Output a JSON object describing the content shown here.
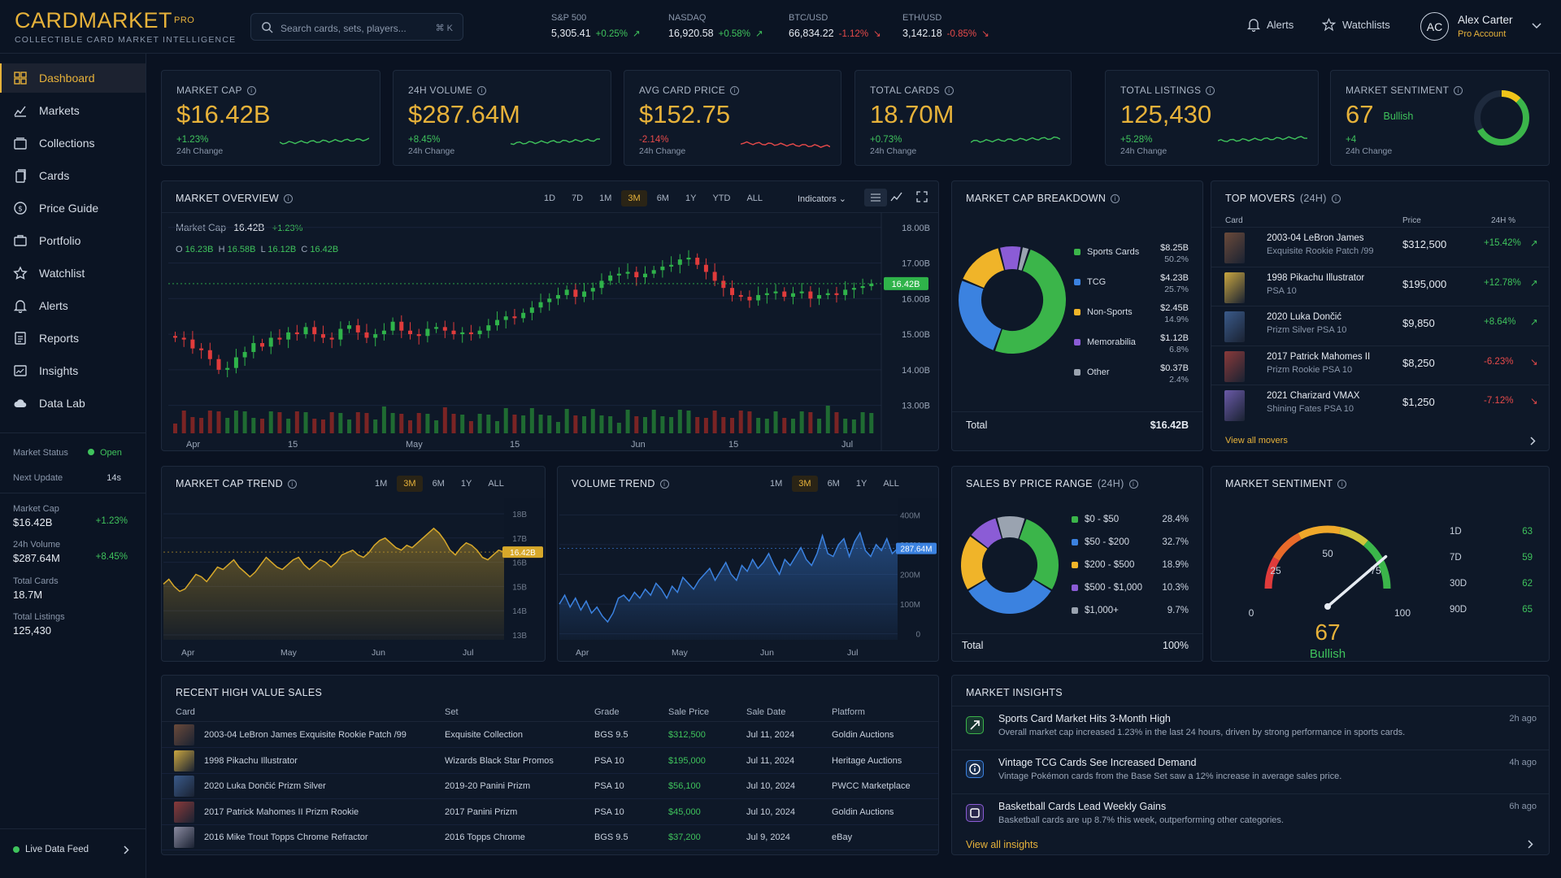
{
  "brand": {
    "name": "CARDMARKET",
    "sup": "PRO",
    "tagline": "COLLECTIBLE CARD MARKET INTELLIGENCE"
  },
  "search": {
    "placeholder": "Search cards, sets, players...",
    "shortcut": "⌘ K"
  },
  "tickers": [
    {
      "name": "S&P 500",
      "value": "5,305.41",
      "change": "+0.25%",
      "dir": "up"
    },
    {
      "name": "NASDAQ",
      "value": "16,920.58",
      "change": "+0.58%",
      "dir": "up"
    },
    {
      "name": "BTC/USD",
      "value": "66,834.22",
      "change": "-1.12%",
      "dir": "dn"
    },
    {
      "name": "ETH/USD",
      "value": "3,142.18",
      "change": "-0.85%",
      "dir": "dn"
    }
  ],
  "topnav": {
    "alerts": "Alerts",
    "watchlists": "Watchlists"
  },
  "user": {
    "initials": "AC",
    "name": "Alex Carter",
    "role": "Pro Account"
  },
  "sidebar": {
    "items": [
      {
        "label": "Dashboard",
        "icon": "grid-icon"
      },
      {
        "label": "Markets",
        "icon": "chart-icon"
      },
      {
        "label": "Collections",
        "icon": "collection-icon"
      },
      {
        "label": "Cards",
        "icon": "cards-icon"
      },
      {
        "label": "Price Guide",
        "icon": "dollar-icon"
      },
      {
        "label": "Portfolio",
        "icon": "briefcase-icon"
      },
      {
        "label": "Watchlist",
        "icon": "star-icon"
      },
      {
        "label": "Alerts",
        "icon": "bell-icon"
      },
      {
        "label": "Reports",
        "icon": "report-icon"
      },
      {
        "label": "Insights",
        "icon": "insights-icon"
      },
      {
        "label": "Data Lab",
        "icon": "cloud-icon"
      }
    ],
    "status_label": "Market Status",
    "status_value": "Open",
    "update_label": "Next Update",
    "update_value": "14s",
    "stats": [
      {
        "label": "Market Cap",
        "value": "$16.42B",
        "change": "+1.23%"
      },
      {
        "label": "24h Volume",
        "value": "$287.64M",
        "change": "+8.45%"
      },
      {
        "label": "Total Cards",
        "value": "18.7M",
        "change": ""
      },
      {
        "label": "Total Listings",
        "value": "125,430",
        "change": ""
      }
    ],
    "live_feed": "Live Data Feed"
  },
  "kpis": [
    {
      "title": "MARKET CAP",
      "value": "$16.42B",
      "change": "+1.23%",
      "dir": "up",
      "sub": "24h Change"
    },
    {
      "title": "24H VOLUME",
      "value": "$287.64M",
      "change": "+8.45%",
      "dir": "up",
      "sub": "24h Change"
    },
    {
      "title": "AVG CARD PRICE",
      "value": "$152.75",
      "change": "-2.14%",
      "dir": "dn",
      "sub": "24h Change"
    },
    {
      "title": "TOTAL CARDS",
      "value": "18.70M",
      "change": "+0.73%",
      "dir": "up",
      "sub": "24h Change"
    },
    {
      "title": "TOTAL LISTINGS",
      "value": "125,430",
      "change": "+5.28%",
      "dir": "up",
      "sub": "24h Change"
    },
    {
      "title": "MARKET SENTIMENT",
      "value": "67",
      "extra": "Bullish",
      "change": "+4",
      "dir": "up",
      "sub": "24h Change",
      "level": 0.67
    }
  ],
  "overview": {
    "title": "MARKET OVERVIEW",
    "timeframes": [
      "1D",
      "7D",
      "1M",
      "3M",
      "6M",
      "1Y",
      "YTD",
      "ALL"
    ],
    "selected": "3M",
    "indicators": "Indicators",
    "label": "Market Cap",
    "value": "16.42B",
    "change": "+1.23%",
    "ohlc": {
      "o": "16.23B",
      "h": "16.58B",
      "l": "16.12B",
      "c": "16.42B"
    },
    "badge": "16.42B"
  },
  "breakdown": {
    "title": "MARKET CAP BREAKDOWN",
    "items": [
      {
        "name": "Sports Cards",
        "value": "$8.25B",
        "pct": "50.2%",
        "color": "#3bb54a"
      },
      {
        "name": "TCG",
        "value": "$4.23B",
        "pct": "25.7%",
        "color": "#3b82e0"
      },
      {
        "name": "Non-Sports",
        "value": "$2.45B",
        "pct": "14.9%",
        "color": "#f0b429"
      },
      {
        "name": "Memorabilia",
        "value": "$1.12B",
        "pct": "6.8%",
        "color": "#8b5cd6"
      },
      {
        "name": "Other",
        "value": "$0.37B",
        "pct": "2.4%",
        "color": "#9aa3b0"
      }
    ],
    "total_label": "Total",
    "total_value": "$16.42B"
  },
  "movers": {
    "title": "TOP MOVERS",
    "period": "(24H)",
    "headers": {
      "card": "Card",
      "price": "Price",
      "chg": "24H %"
    },
    "rows": [
      {
        "name": "2003-04 LeBron James",
        "sub": "Exquisite Rookie Patch /99",
        "price": "$312,500",
        "chg": "+15.42%",
        "dir": "up"
      },
      {
        "name": "1998 Pikachu Illustrator",
        "sub": "PSA 10",
        "price": "$195,000",
        "chg": "+12.78%",
        "dir": "up"
      },
      {
        "name": "2020 Luka Dončić",
        "sub": "Prizm Silver PSA 10",
        "price": "$9,850",
        "chg": "+8.64%",
        "dir": "up"
      },
      {
        "name": "2017 Patrick Mahomes II",
        "sub": "Prizm Rookie PSA 10",
        "price": "$8,250",
        "chg": "-6.23%",
        "dir": "dn"
      },
      {
        "name": "2021 Charizard VMAX",
        "sub": "Shining Fates PSA 10",
        "price": "$1,250",
        "chg": "-7.12%",
        "dir": "dn"
      }
    ],
    "view_all": "View all movers"
  },
  "cap_trend": {
    "title": "MARKET CAP TREND",
    "timeframes": [
      "1M",
      "3M",
      "6M",
      "1Y",
      "ALL"
    ],
    "selected": "3M",
    "badge": "16.42B"
  },
  "vol_trend": {
    "title": "VOLUME TREND",
    "timeframes": [
      "1M",
      "3M",
      "6M",
      "1Y",
      "ALL"
    ],
    "selected": "3M",
    "badge": "287.64M"
  },
  "price_range": {
    "title": "SALES BY PRICE RANGE",
    "period": "(24H)",
    "items": [
      {
        "name": "$0 - $50",
        "pct": "28.4%",
        "color": "#3bb54a"
      },
      {
        "name": "$50 - $200",
        "pct": "32.7%",
        "color": "#3b82e0"
      },
      {
        "name": "$200 - $500",
        "pct": "18.9%",
        "color": "#f0b429"
      },
      {
        "name": "$500 - $1,000",
        "pct": "10.3%",
        "color": "#8b5cd6"
      },
      {
        "name": "$1,000+",
        "pct": "9.7%",
        "color": "#9aa3b0"
      }
    ],
    "total_label": "Total",
    "total_value": "100%"
  },
  "sentiment": {
    "title": "MARKET SENTIMENT",
    "value": "67",
    "label": "Bullish",
    "level": 0.67,
    "ticks": [
      "0",
      "25",
      "50",
      "75",
      "100"
    ],
    "periods": [
      {
        "p": "1D",
        "v": "63"
      },
      {
        "p": "7D",
        "v": "59"
      },
      {
        "p": "30D",
        "v": "62"
      },
      {
        "p": "90D",
        "v": "65"
      }
    ]
  },
  "sales": {
    "title": "RECENT HIGH VALUE SALES",
    "headers": [
      "Card",
      "Set",
      "Grade",
      "Sale Price",
      "Sale Date",
      "Platform"
    ],
    "rows": [
      [
        "2003-04 LeBron James Exquisite Rookie Patch /99",
        "Exquisite Collection",
        "BGS 9.5",
        "$312,500",
        "Jul 11, 2024",
        "Goldin Auctions"
      ],
      [
        "1998 Pikachu Illustrator",
        "Wizards Black Star Promos",
        "PSA 10",
        "$195,000",
        "Jul 11, 2024",
        "Heritage Auctions"
      ],
      [
        "2020 Luka Dončić Prizm Silver",
        "2019-20 Panini Prizm",
        "PSA 10",
        "$56,100",
        "Jul 10, 2024",
        "PWCC Marketplace"
      ],
      [
        "2017 Patrick Mahomes II Prizm Rookie",
        "2017 Panini Prizm",
        "PSA 10",
        "$45,000",
        "Jul 10, 2024",
        "Goldin Auctions"
      ],
      [
        "2016 Mike Trout Topps Chrome Refractor",
        "2016 Topps Chrome",
        "BGS 9.5",
        "$37,200",
        "Jul 9, 2024",
        "eBay"
      ]
    ]
  },
  "insights": {
    "title": "MARKET INSIGHTS",
    "items": [
      {
        "title": "Sports Card Market Hits 3-Month High",
        "desc": "Overall market cap increased 1.23% in the last 24 hours, driven by strong performance in sports cards.",
        "time": "2h ago",
        "icon": "trend-up-icon",
        "color": "#3bb54a"
      },
      {
        "title": "Vintage TCG Cards See Increased Demand",
        "desc": "Vintage Pokémon cards from the Base Set saw a 12% increase in average sales price.",
        "time": "4h ago",
        "icon": "info-icon",
        "color": "#3b82e0"
      },
      {
        "title": "Basketball Cards Lead Weekly Gains",
        "desc": "Basketball cards are up 8.7% this week, outperforming other categories.",
        "time": "6h ago",
        "icon": "cube-icon",
        "color": "#8b5cd6"
      }
    ],
    "view_all": "View all insights"
  },
  "chart_data": [
    {
      "type": "candlestick",
      "title": "MARKET OVERVIEW",
      "x_ticks": [
        "Apr",
        "15",
        "May",
        "15",
        "Jun",
        "15",
        "Jul"
      ],
      "y_ticks": [
        "13.00B",
        "14.00B",
        "15.00B",
        "16.00B",
        "17.00B",
        "18.00B"
      ],
      "ylim": [
        12.9,
        18.2
      ],
      "close": [
        14.9,
        14.85,
        14.6,
        14.55,
        14.3,
        14.0,
        14.05,
        14.35,
        14.5,
        14.75,
        14.65,
        14.9,
        14.85,
        15.05,
        15.0,
        15.2,
        15.0,
        14.9,
        14.85,
        15.15,
        15.25,
        15.05,
        14.9,
        15.0,
        15.1,
        15.35,
        15.1,
        15.0,
        14.95,
        15.15,
        15.2,
        15.1,
        15.0,
        15.05,
        15.0,
        15.1,
        15.25,
        15.4,
        15.5,
        15.45,
        15.6,
        15.75,
        15.9,
        16.0,
        16.1,
        16.25,
        16.05,
        16.2,
        16.3,
        16.5,
        16.65,
        16.7,
        16.75,
        16.6,
        16.7,
        16.8,
        16.9,
        16.95,
        17.1,
        17.15,
        16.95,
        16.75,
        16.5,
        16.3,
        16.1,
        16.05,
        15.95,
        16.1,
        16.15,
        16.2,
        16.05,
        16.15,
        16.2,
        16.0,
        16.1,
        16.15,
        16.1,
        16.25,
        16.3,
        16.35,
        16.42
      ],
      "volume": "unlabeled"
    },
    {
      "type": "area",
      "title": "MARKET CAP TREND",
      "x_ticks": [
        "Apr",
        "May",
        "Jun",
        "Jul"
      ],
      "y_ticks": [
        "13B",
        "14B",
        "15B",
        "16B",
        "17B",
        "18B"
      ],
      "ylim": [
        12.8,
        18.2
      ],
      "values": [
        15.1,
        15.3,
        15.0,
        14.8,
        14.9,
        15.2,
        15.5,
        15.4,
        15.2,
        15.5,
        15.8,
        15.7,
        15.9,
        16.1,
        15.8,
        15.6,
        15.4,
        15.6,
        15.9,
        16.2,
        16.0,
        15.8,
        15.7,
        15.9,
        16.1,
        16.2,
        15.9,
        15.7,
        15.9,
        16.1,
        16.0,
        15.8,
        16.0,
        16.3,
        16.4,
        16.5,
        16.3,
        16.2,
        16.4,
        16.7,
        16.9,
        17.0,
        16.8,
        16.6,
        16.5,
        16.7,
        16.6,
        16.8,
        17.0,
        17.2,
        17.4,
        17.2,
        16.9,
        16.5,
        16.3,
        16.6,
        16.8,
        16.7,
        16.5,
        16.2,
        16.1,
        16.3,
        16.5,
        16.42
      ]
    },
    {
      "type": "area",
      "title": "VOLUME TREND",
      "x_ticks": [
        "Apr",
        "May",
        "Jun",
        "Jul"
      ],
      "y_ticks": [
        "0",
        "100M",
        "200M",
        "300M",
        "400M"
      ],
      "ylim": [
        -20,
        420
      ],
      "values": [
        100,
        130,
        90,
        120,
        80,
        110,
        70,
        90,
        60,
        40,
        70,
        120,
        130,
        110,
        140,
        120,
        150,
        130,
        170,
        150,
        120,
        160,
        140,
        190,
        170,
        150,
        180,
        200,
        220,
        180,
        210,
        240,
        200,
        180,
        230,
        210,
        250,
        220,
        240,
        270,
        230,
        200,
        250,
        230,
        260,
        290,
        250,
        230,
        270,
        330,
        270,
        260,
        300,
        320,
        260,
        310,
        340,
        280,
        260,
        300,
        280,
        320,
        270,
        287
      ]
    }
  ]
}
